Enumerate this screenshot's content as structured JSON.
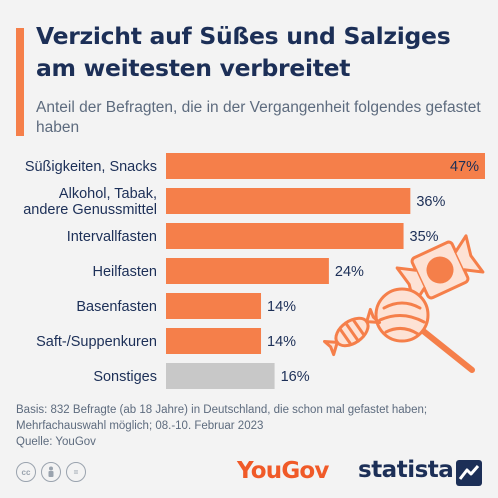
{
  "header": {
    "title": "Verzicht auf Süßes und Salziges am weitesten verbreitet",
    "subtitle": "Anteil der Befragten, die in der Vergangenheit folgendes gefastet haben"
  },
  "chart_data": {
    "type": "bar",
    "orientation": "horizontal",
    "categories": [
      "Süßigkeiten, Snacks",
      "Alkohol, Tabak, andere Genussmittel",
      "Intervallfasten",
      "Heilfasten",
      "Basenfasten",
      "Saft-/Suppenkuren",
      "Sonstiges"
    ],
    "category_lines": [
      [
        "Süßigkeiten, Snacks"
      ],
      [
        "Alkohol, Tabak,",
        "andere Genussmittel"
      ],
      [
        "Intervallfasten"
      ],
      [
        "Heilfasten"
      ],
      [
        "Basenfasten"
      ],
      [
        "Saft-/Suppenkuren"
      ],
      [
        "Sonstiges"
      ]
    ],
    "values": [
      47,
      36,
      35,
      24,
      14,
      14,
      16
    ],
    "value_labels": [
      "47%",
      "36%",
      "35%",
      "24%",
      "14%",
      "14%",
      "16%"
    ],
    "unit": "%",
    "xlim": [
      0,
      47
    ],
    "grid": false,
    "colors": {
      "bar": "#f57f4a",
      "bar_other": "#c8c8c8",
      "label_inside": "#1c2f57",
      "label_outside": "#1c2f57"
    }
  },
  "footer": {
    "basis_line1": "Basis: 832 Befragte (ab 18 Jahre) in Deutschland, die schon mal gefastet haben;",
    "basis_line2": "Mehrfachauswahl möglich; 08.-10. Februar 2023",
    "source": "Quelle: YouGov",
    "license_icons": [
      "cc",
      "by",
      "="
    ],
    "brand_yougov": "YouGov",
    "brand_statista": "statista"
  },
  "illustration": "candy-icon",
  "colors": {
    "accent": "#f57f4a",
    "title": "#1c2f57",
    "background": "#f3f3f3"
  }
}
